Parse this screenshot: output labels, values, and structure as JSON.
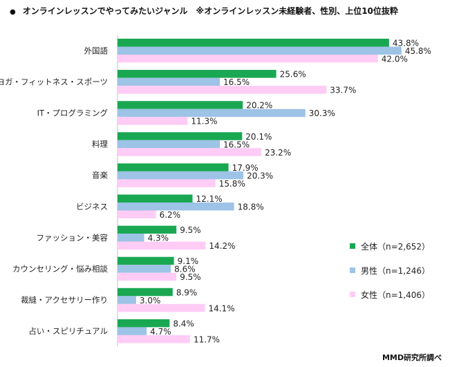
{
  "title": "オンラインレッスンでやってみたいジャンル　※オンラインレッスン未経験者、性別、上位10位抜粋",
  "title_bullet": "●",
  "source": "MMD研究所調べ",
  "colors": {
    "all": "#1aa752",
    "male": "#9dc3e6",
    "female": "#ffccf6"
  },
  "chart_data": {
    "type": "bar",
    "orientation": "horizontal",
    "title": "オンラインレッスンでやってみたいジャンル　※オンラインレッスン未経験者、性別、上位10位抜粋",
    "categories": [
      "外国語",
      "ヨガ・フィットネス・スポーツ",
      "IT・プログラミング",
      "料理",
      "音楽",
      "ビジネス",
      "ファッション・美容",
      "カウンセリング・悩み相談",
      "裁縫・アクセサリー作り",
      "占い・スピリチュアル"
    ],
    "series": [
      {
        "name": "全体（n=2,652）",
        "values": [
          43.8,
          25.6,
          20.2,
          20.1,
          17.9,
          12.1,
          9.5,
          9.1,
          8.9,
          8.4
        ]
      },
      {
        "name": "男性（n=1,246）",
        "values": [
          45.8,
          16.5,
          30.3,
          16.5,
          20.3,
          18.8,
          4.3,
          8.6,
          3.0,
          4.7
        ]
      },
      {
        "name": "女性（n=1,406）",
        "values": [
          42.0,
          33.7,
          11.3,
          23.2,
          15.8,
          6.2,
          14.2,
          9.5,
          14.1,
          11.7
        ]
      }
    ],
    "unit": "%",
    "legend_position": "right",
    "grid": false,
    "xlim": [
      0,
      50
    ]
  }
}
